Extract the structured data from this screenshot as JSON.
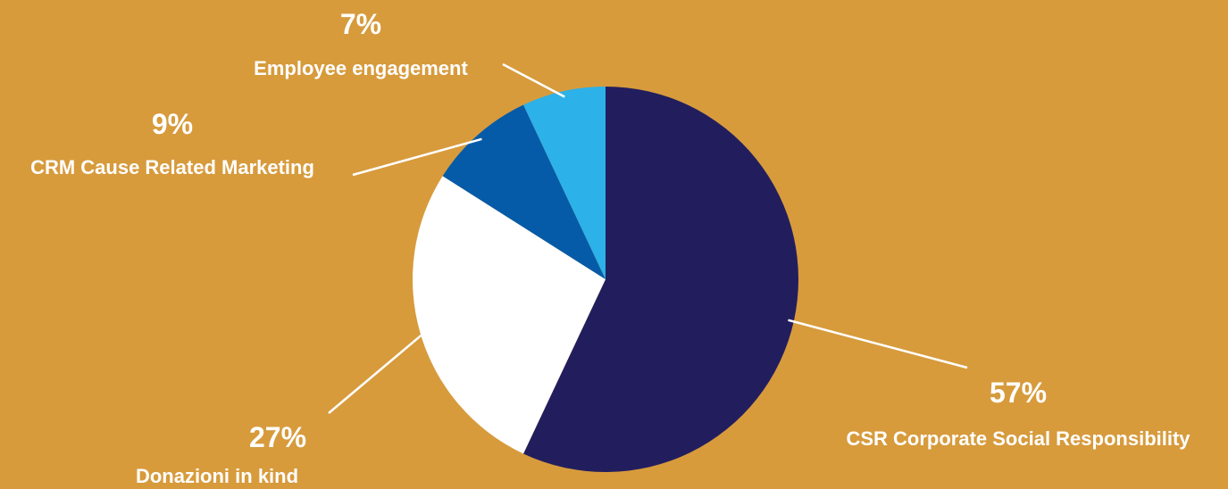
{
  "chart_data": {
    "type": "pie",
    "title": "",
    "start": "12 o'clock",
    "direction": "clockwise",
    "background_color": "#D79B3C",
    "text_color": "#FFFFFF",
    "leader_line_color": "#FFFFFF",
    "legend": "none",
    "slices": [
      {
        "label": "CSR Corporate Social Responsibility",
        "value": 57,
        "display": "57%",
        "color": "#221E5E"
      },
      {
        "label": "Donazioni in kind",
        "value": 27,
        "display": "27%",
        "color": "#FFFFFF"
      },
      {
        "label": "CRM Cause Related Marketing",
        "value": 9,
        "display": "9%",
        "color": "#055BA8"
      },
      {
        "label": "Employee engagement",
        "value": 7,
        "display": "7%",
        "color": "#2CB1E8"
      }
    ]
  }
}
